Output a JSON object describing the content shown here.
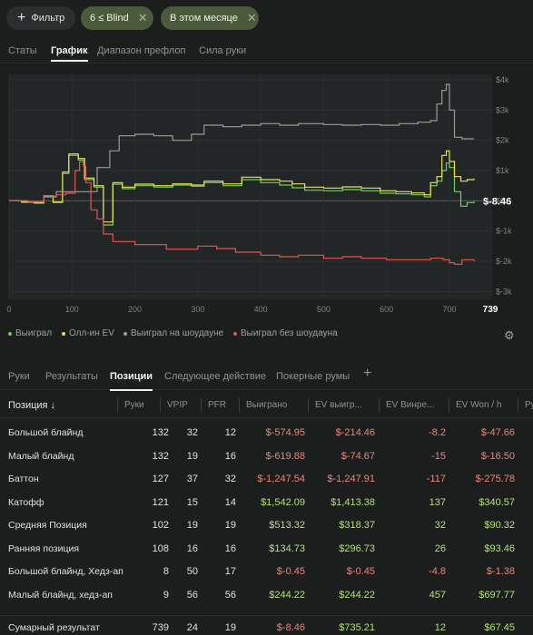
{
  "filters": {
    "filter_label": "Фильтр",
    "chips": [
      {
        "label": "6 ≤ Blind"
      },
      {
        "label": "В этом месяце"
      }
    ]
  },
  "top_tabs": [
    "Статы",
    "График",
    "Диапазон префлоп",
    "Сила руки"
  ],
  "top_tabs_active": "График",
  "chart_data": {
    "type": "line",
    "x_ticks": [
      0,
      100,
      200,
      300,
      400,
      500,
      600,
      700
    ],
    "x_end_label": "739",
    "y_ticks": [
      "$4k",
      "$3k",
      "$2k",
      "$1k",
      "$0",
      "$-1k",
      "$-2k",
      "$-3k"
    ],
    "y_tick_values": [
      4000,
      3000,
      2000,
      1000,
      0,
      -1000,
      -2000,
      -3000
    ],
    "ylim": [
      -3200,
      4000
    ],
    "xlim": [
      0,
      739
    ],
    "current_value_label": "$-8.46",
    "series": [
      {
        "name": "Выиграл",
        "color": "#6fd25a",
        "points": [
          [
            0,
            0
          ],
          [
            20,
            -50
          ],
          [
            40,
            -80
          ],
          [
            55,
            150
          ],
          [
            70,
            -60
          ],
          [
            85,
            900
          ],
          [
            95,
            1500
          ],
          [
            110,
            1350
          ],
          [
            120,
            700
          ],
          [
            135,
            450
          ],
          [
            150,
            -800
          ],
          [
            165,
            550
          ],
          [
            180,
            400
          ],
          [
            200,
            500
          ],
          [
            230,
            450
          ],
          [
            260,
            520
          ],
          [
            290,
            480
          ],
          [
            310,
            600
          ],
          [
            340,
            500
          ],
          [
            370,
            700
          ],
          [
            400,
            600
          ],
          [
            430,
            520
          ],
          [
            450,
            430
          ],
          [
            470,
            350
          ],
          [
            500,
            330
          ],
          [
            530,
            370
          ],
          [
            560,
            330
          ],
          [
            590,
            250
          ],
          [
            615,
            230
          ],
          [
            640,
            200
          ],
          [
            660,
            130
          ],
          [
            670,
            500
          ],
          [
            680,
            650
          ],
          [
            688,
            1000
          ],
          [
            695,
            1250
          ],
          [
            700,
            1100
          ],
          [
            708,
            300
          ],
          [
            718,
            -180
          ],
          [
            728,
            -60
          ],
          [
            739,
            -8
          ]
        ]
      },
      {
        "name": "Олл-ин EV",
        "color": "#e6e35a",
        "points": [
          [
            0,
            0
          ],
          [
            20,
            -40
          ],
          [
            40,
            -60
          ],
          [
            55,
            160
          ],
          [
            70,
            -40
          ],
          [
            85,
            950
          ],
          [
            95,
            1550
          ],
          [
            110,
            1400
          ],
          [
            120,
            750
          ],
          [
            135,
            500
          ],
          [
            150,
            -700
          ],
          [
            165,
            600
          ],
          [
            180,
            450
          ],
          [
            200,
            550
          ],
          [
            230,
            500
          ],
          [
            260,
            560
          ],
          [
            290,
            520
          ],
          [
            310,
            650
          ],
          [
            340,
            560
          ],
          [
            370,
            780
          ],
          [
            400,
            700
          ],
          [
            430,
            650
          ],
          [
            450,
            560
          ],
          [
            470,
            450
          ],
          [
            500,
            420
          ],
          [
            530,
            460
          ],
          [
            560,
            420
          ],
          [
            590,
            330
          ],
          [
            615,
            300
          ],
          [
            640,
            260
          ],
          [
            660,
            200
          ],
          [
            670,
            600
          ],
          [
            680,
            800
          ],
          [
            688,
            1500
          ],
          [
            695,
            1650
          ],
          [
            700,
            1300
          ],
          [
            708,
            800
          ],
          [
            718,
            650
          ],
          [
            728,
            700
          ],
          [
            739,
            735
          ]
        ]
      },
      {
        "name": "Выиграл на шоудауне",
        "color": "#9a9c9a",
        "points": [
          [
            0,
            0
          ],
          [
            30,
            -40
          ],
          [
            55,
            150
          ],
          [
            75,
            300
          ],
          [
            95,
            300
          ],
          [
            110,
            300
          ],
          [
            120,
            300
          ],
          [
            140,
            1100
          ],
          [
            160,
            1650
          ],
          [
            175,
            2150
          ],
          [
            200,
            2200
          ],
          [
            230,
            2150
          ],
          [
            260,
            2000
          ],
          [
            290,
            2200
          ],
          [
            310,
            2500
          ],
          [
            340,
            2450
          ],
          [
            370,
            2500
          ],
          [
            400,
            2550
          ],
          [
            430,
            2500
          ],
          [
            460,
            2550
          ],
          [
            500,
            2520
          ],
          [
            530,
            2500
          ],
          [
            560,
            2520
          ],
          [
            590,
            2500
          ],
          [
            620,
            2550
          ],
          [
            650,
            2600
          ],
          [
            670,
            2650
          ],
          [
            680,
            3200
          ],
          [
            688,
            3650
          ],
          [
            695,
            3850
          ],
          [
            700,
            3000
          ],
          [
            708,
            2100
          ],
          [
            720,
            2050
          ],
          [
            739,
            2050
          ]
        ]
      },
      {
        "name": "Выиграл без шоудауна",
        "color": "#e0594e",
        "points": [
          [
            0,
            0
          ],
          [
            30,
            -30
          ],
          [
            55,
            120
          ],
          [
            75,
            200
          ],
          [
            90,
            250
          ],
          [
            105,
            1000
          ],
          [
            112,
            1300
          ],
          [
            118,
            1150
          ],
          [
            122,
            600
          ],
          [
            130,
            -300
          ],
          [
            140,
            -600
          ],
          [
            150,
            -1100
          ],
          [
            165,
            -1350
          ],
          [
            200,
            -1450
          ],
          [
            250,
            -1600
          ],
          [
            300,
            -1500
          ],
          [
            330,
            -1580
          ],
          [
            360,
            -1700
          ],
          [
            400,
            -1800
          ],
          [
            430,
            -1850
          ],
          [
            460,
            -1800
          ],
          [
            500,
            -1900
          ],
          [
            530,
            -1850
          ],
          [
            560,
            -1900
          ],
          [
            600,
            -1950
          ],
          [
            640,
            -1950
          ],
          [
            670,
            -1900
          ],
          [
            690,
            -1950
          ],
          [
            700,
            -2050
          ],
          [
            708,
            -2100
          ],
          [
            720,
            -1950
          ],
          [
            739,
            -2000
          ]
        ]
      }
    ]
  },
  "legend": [
    {
      "label": "Выиграл",
      "color": "#6fd25a"
    },
    {
      "label": "Олл-ин EV",
      "color": "#e6e35a"
    },
    {
      "label": "Выиграл на шоудауне",
      "color": "#9a9c9a"
    },
    {
      "label": "Выиграл без шоудауна",
      "color": "#e0594e"
    }
  ],
  "icons": {
    "settings": "gear-icon",
    "add_tab": "plus-icon",
    "filter_add": "plus-icon",
    "chip_remove": "close-icon"
  },
  "bottom_tabs": [
    "Руки",
    "Результаты",
    "Позиции",
    "Следующее действие",
    "Покерные румы"
  ],
  "bottom_tabs_active": "Позиции",
  "table": {
    "headers": [
      "Позиция ↓",
      "Руки",
      "VPIP",
      "PFR",
      "Выиграно",
      "EV выигр...",
      "EV Винре...",
      "EV Won / h",
      "Ру"
    ],
    "rows": [
      {
        "name": "Большой блайнд",
        "hands": "132",
        "vpip": "32",
        "pfr": "12",
        "won": "$-574.95",
        "ev": "$-214.46",
        "evbb": "-8.2",
        "evh": "$-47.66",
        "won_s": "neg",
        "ev_s": "neg",
        "evbb_s": "neg",
        "evh_s": "neg"
      },
      {
        "name": "Малый блайнд",
        "hands": "132",
        "vpip": "19",
        "pfr": "16",
        "won": "$-619.88",
        "ev": "$-74.67",
        "evbb": "-15",
        "evh": "$-16.50",
        "won_s": "neg",
        "ev_s": "neg",
        "evbb_s": "neg",
        "evh_s": "neg"
      },
      {
        "name": "Баттон",
        "hands": "127",
        "vpip": "37",
        "pfr": "32",
        "won": "$-1,247.54",
        "ev": "$-1,247.91",
        "evbb": "-117",
        "evh": "$-275.78",
        "won_s": "neg",
        "ev_s": "neg",
        "evbb_s": "neg",
        "evh_s": "neg"
      },
      {
        "name": "Катофф",
        "hands": "121",
        "vpip": "15",
        "pfr": "14",
        "won": "$1,542.09",
        "ev": "$1,413.38",
        "evbb": "137",
        "evh": "$340.57",
        "won_s": "pos",
        "ev_s": "pos",
        "evbb_s": "pos",
        "evh_s": "pos"
      },
      {
        "name": "Средняя Позиция",
        "hands": "102",
        "vpip": "19",
        "pfr": "19",
        "won": "$513.32",
        "ev": "$318.37",
        "evbb": "32",
        "evh": "$90.32",
        "won_s": "pos",
        "ev_s": "pos",
        "evbb_s": "pos",
        "evh_s": "pos"
      },
      {
        "name": "Ранняя позиция",
        "hands": "108",
        "vpip": "16",
        "pfr": "16",
        "won": "$134.73",
        "ev": "$296.73",
        "evbb": "26",
        "evh": "$93.46",
        "won_s": "pos",
        "ev_s": "pos",
        "evbb_s": "pos",
        "evh_s": "pos"
      },
      {
        "name": "Большой блайнд, Хедз-ап",
        "hands": "8",
        "vpip": "50",
        "pfr": "17",
        "won": "$-0.45",
        "ev": "$-0.45",
        "evbb": "-4.8",
        "evh": "$-1.38",
        "won_s": "neg",
        "ev_s": "neg",
        "evbb_s": "neg",
        "evh_s": "neg"
      },
      {
        "name": "Малый блайнд, хедз-ап",
        "hands": "9",
        "vpip": "56",
        "pfr": "56",
        "won": "$244.22",
        "ev": "$244.22",
        "evbb": "457",
        "evh": "$697.77",
        "won_s": "pos",
        "ev_s": "pos",
        "evbb_s": "pos",
        "evh_s": "pos"
      }
    ],
    "total": {
      "name": "Сумарный результат",
      "hands": "739",
      "vpip": "24",
      "pfr": "19",
      "won": "$-8.46",
      "ev": "$735.21",
      "evbb": "12",
      "evh": "$67.45",
      "won_s": "neg",
      "ev_s": "pos",
      "evbb_s": "pos",
      "evh_s": "pos"
    }
  }
}
